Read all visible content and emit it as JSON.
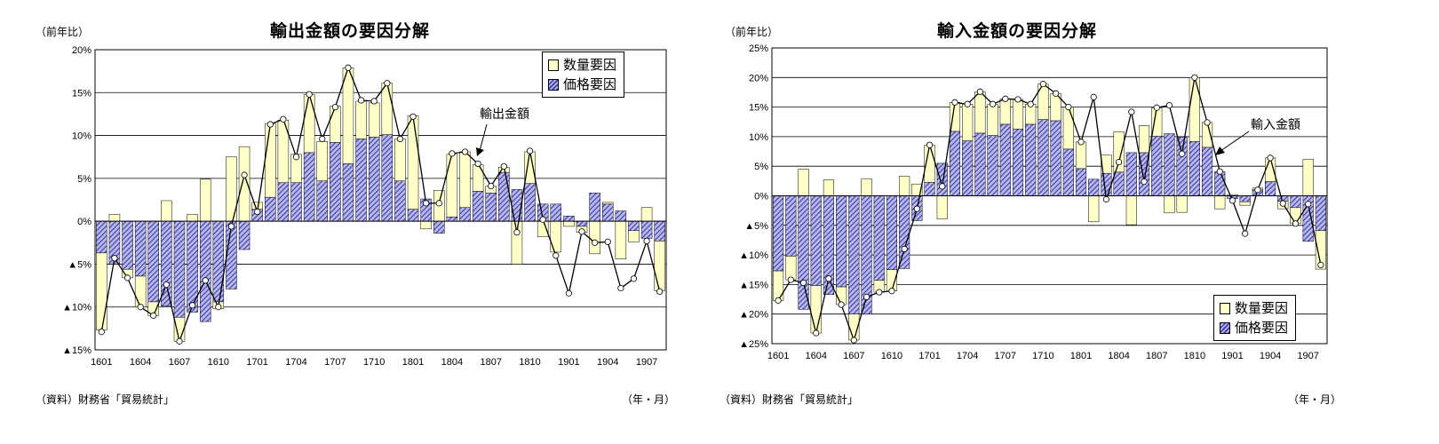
{
  "colors": {
    "volume": "#ffffc8",
    "price": "#5555c0",
    "price_hatch": "#3a3aa6",
    "line": "#000000",
    "marker": "#ffffff"
  },
  "export_chart": {
    "title": "輸出金額の要因分解",
    "y_axis_label": "（前年比）",
    "source": "（資料）財務省「貿易統計」",
    "unit_label": "（年・月）",
    "legend": {
      "volume": "数量要因",
      "price": "価格要因"
    },
    "callout": "輸出金額"
  },
  "import_chart": {
    "title": "輸入金額の要因分解",
    "y_axis_label": "（前年比）",
    "source": "（資料）財務省「貿易統計」",
    "unit_label": "（年・月）",
    "legend": {
      "volume": "数量要因",
      "price": "価格要因"
    },
    "callout": "輸入金額"
  },
  "chart_data": [
    {
      "type": "bar",
      "title": "輸出金額の要因分解",
      "ylabel": "（前年比）",
      "xlabel": "（年・月）",
      "ylim": [
        -15,
        20
      ],
      "y_ticks": [
        20,
        15,
        10,
        5,
        0,
        -5,
        -10,
        -15
      ],
      "y_tick_labels": [
        "20%",
        "15%",
        "10%",
        "5%",
        "0%",
        "▲5%",
        "▲10%",
        "▲15%"
      ],
      "x_tick_labels": [
        "1601",
        "1604",
        "1607",
        "1610",
        "1701",
        "1704",
        "1707",
        "1710",
        "1801",
        "1804",
        "1807",
        "1810",
        "1901",
        "1904",
        "1907"
      ],
      "categories": [
        "1601",
        "1602",
        "1603",
        "1604",
        "1605",
        "1606",
        "1607",
        "1608",
        "1609",
        "1610",
        "1611",
        "1612",
        "1701",
        "1702",
        "1703",
        "1704",
        "1705",
        "1706",
        "1707",
        "1708",
        "1709",
        "1710",
        "1711",
        "1712",
        "1801",
        "1802",
        "1803",
        "1804",
        "1805",
        "1806",
        "1807",
        "1808",
        "1809",
        "1810",
        "1811",
        "1812",
        "1901",
        "1902",
        "1903",
        "1904",
        "1905",
        "1906",
        "1907",
        "1908"
      ],
      "grid": true,
      "legend_position": "top-right",
      "series": [
        {
          "name": "数量要因",
          "kind": "bar",
          "values": [
            -9.0,
            0.8,
            -1.0,
            -3.6,
            -1.6,
            2.4,
            -2.8,
            0.8,
            4.9,
            -0.8,
            7.5,
            8.7,
            0.8,
            8.6,
            7.3,
            3.3,
            6.8,
            4.6,
            4.2,
            11.2,
            4.4,
            4.0,
            6.0,
            4.9,
            10.9,
            -0.9,
            3.6,
            7.3,
            6.5,
            3.1,
            0.8,
            0.6,
            -5.0,
            3.7,
            -1.8,
            -3.6,
            -0.6,
            -0.7,
            -3.8,
            0.2,
            -4.4,
            -1.3,
            1.6,
            -5.8
          ]
        },
        {
          "name": "価格要因",
          "kind": "bar",
          "values": [
            -3.7,
            -5.0,
            -5.6,
            -6.4,
            -9.4,
            -9.9,
            -11.2,
            -10.6,
            -11.7,
            -9.4,
            -7.9,
            -3.3,
            1.4,
            2.8,
            4.5,
            4.5,
            8.0,
            4.7,
            9.2,
            6.7,
            9.6,
            9.8,
            10.1,
            4.7,
            1.4,
            2.6,
            -1.4,
            0.5,
            1.6,
            3.5,
            3.3,
            5.7,
            3.7,
            4.4,
            2.0,
            2.0,
            0.6,
            -0.6,
            3.3,
            2.0,
            1.2,
            -1.1,
            -2.0,
            -2.3
          ]
        },
        {
          "name": "輸出金額",
          "kind": "line",
          "values": [
            -12.9,
            -4.3,
            -6.6,
            -10.0,
            -11.0,
            -7.4,
            -14.0,
            -9.8,
            -6.9,
            -10.0,
            -0.6,
            5.4,
            1.1,
            11.3,
            11.9,
            7.5,
            14.8,
            9.6,
            13.3,
            17.9,
            14.1,
            14.0,
            16.1,
            9.6,
            12.2,
            2.1,
            2.1,
            7.9,
            8.1,
            6.7,
            4.1,
            6.4,
            -1.3,
            8.2,
            0.2,
            -4.0,
            -8.4,
            -1.2,
            -2.5,
            -2.4,
            -7.8,
            -6.7,
            -2.3,
            -8.2
          ]
        }
      ]
    },
    {
      "type": "bar",
      "title": "輸入金額の要因分解",
      "ylabel": "（前年比）",
      "xlabel": "（年・月）",
      "ylim": [
        -25,
        25
      ],
      "y_ticks": [
        25,
        20,
        15,
        10,
        5,
        0,
        -5,
        -10,
        -15,
        -20,
        -25
      ],
      "y_tick_labels": [
        "25%",
        "20%",
        "15%",
        "10%",
        "5%",
        "0%",
        "▲5%",
        "▲10%",
        "▲15%",
        "▲20%",
        "▲25%"
      ],
      "x_tick_labels": [
        "1601",
        "1604",
        "1607",
        "1610",
        "1701",
        "1704",
        "1707",
        "1710",
        "1801",
        "1804",
        "1807",
        "1810",
        "1901",
        "1904",
        "1907"
      ],
      "categories": [
        "1601",
        "1602",
        "1603",
        "1604",
        "1605",
        "1606",
        "1607",
        "1608",
        "1609",
        "1610",
        "1611",
        "1612",
        "1701",
        "1702",
        "1703",
        "1704",
        "1705",
        "1706",
        "1707",
        "1708",
        "1709",
        "1710",
        "1711",
        "1712",
        "1801",
        "1802",
        "1803",
        "1804",
        "1805",
        "1806",
        "1807",
        "1808",
        "1809",
        "1810",
        "1811",
        "1812",
        "1901",
        "1902",
        "1903",
        "1904",
        "1905",
        "1906",
        "1907",
        "1908"
      ],
      "grid": true,
      "legend_position": "bottom-right",
      "series": [
        {
          "name": "数量要因",
          "kind": "bar",
          "values": [
            -5.0,
            -4.0,
            4.5,
            -8.0,
            2.7,
            -3.0,
            -4.4,
            2.9,
            -2.0,
            -3.6,
            3.3,
            2.0,
            6.3,
            -3.9,
            4.9,
            6.2,
            7.0,
            5.3,
            4.3,
            5.0,
            3.4,
            6.0,
            4.6,
            7.1,
            4.5,
            -4.4,
            3.1,
            6.8,
            -4.9,
            4.6,
            4.8,
            -2.9,
            -2.8,
            10.8,
            4.2,
            -2.2,
            0.2,
            -0.6,
            0.3,
            4.0,
            -1.3,
            -2.7,
            6.2,
            -6.5
          ]
        },
        {
          "name": "価格要因",
          "kind": "bar",
          "values": [
            -12.7,
            -10.2,
            -19.2,
            -15.2,
            -16.7,
            -15.4,
            -20.0,
            -20.0,
            -14.3,
            -12.5,
            -12.3,
            -4.2,
            2.3,
            5.5,
            10.9,
            9.3,
            10.6,
            10.2,
            12.1,
            11.3,
            12.1,
            12.9,
            12.7,
            7.9,
            4.6,
            2.8,
            3.8,
            4.0,
            7.3,
            7.3,
            10.1,
            10.5,
            9.9,
            9.2,
            8.2,
            4.1,
            -0.5,
            -1.0,
            1.0,
            2.4,
            -0.9,
            -2.0,
            -7.7,
            -5.9
          ]
        },
        {
          "name": "輸入金額",
          "kind": "line",
          "values": [
            -17.7,
            -14.2,
            -14.7,
            -23.2,
            -14.0,
            -18.4,
            -24.4,
            -17.1,
            -16.3,
            -16.1,
            -9.0,
            -2.2,
            8.6,
            1.6,
            15.8,
            15.5,
            17.6,
            15.5,
            16.4,
            16.3,
            15.5,
            18.9,
            17.3,
            15.0,
            9.1,
            16.7,
            -0.6,
            5.7,
            14.2,
            2.4,
            14.9,
            15.3,
            7.1,
            20.0,
            12.4,
            4.1,
            -0.8,
            -6.4,
            1.0,
            6.4,
            -1.3,
            -4.7,
            -1.4,
            -11.7
          ]
        }
      ]
    }
  ]
}
